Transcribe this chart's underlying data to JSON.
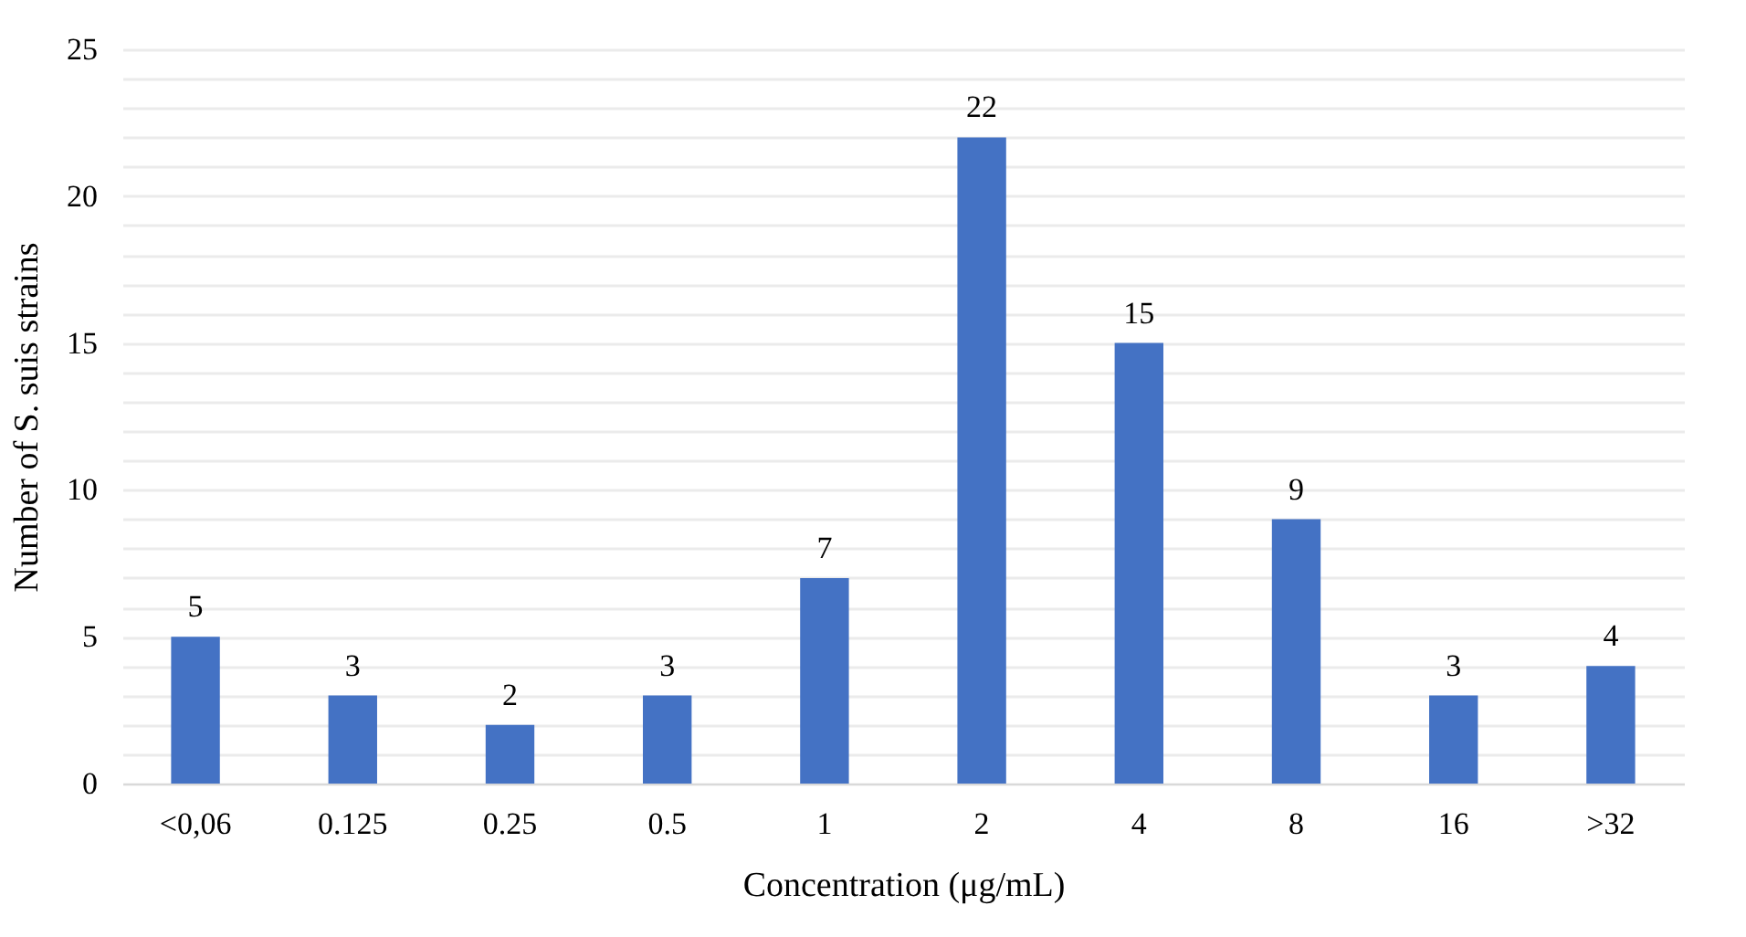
{
  "chart_data": {
    "type": "bar",
    "categories": [
      "<0,06",
      "0.125",
      "0.25",
      "0.5",
      "1",
      "2",
      "4",
      "8",
      "16",
      ">32"
    ],
    "values": [
      5,
      3,
      2,
      3,
      7,
      22,
      15,
      9,
      3,
      4
    ],
    "color": "#4472c4",
    "xlabel": "Concentration (μg/mL)",
    "ylabel": "Number of S. suis strains",
    "ylim": [
      0,
      25
    ],
    "yticks": [
      0,
      {
        "value": 1,
        "label": null
      },
      {
        "value": 2,
        "label": null
      },
      {
        "value": 3,
        "label": null
      },
      {
        "value": 4,
        "label": null
      },
      5,
      {
        "value": 6,
        "label": null
      },
      {
        "value": 7,
        "label": null
      },
      {
        "value": 8,
        "label": null
      },
      {
        "value": 9,
        "label": null
      },
      10,
      {
        "value": 11,
        "label": null
      },
      {
        "value": 12,
        "label": null
      },
      {
        "value": 13,
        "label": null
      },
      {
        "value": 14,
        "label": null
      },
      15,
      {
        "value": 16,
        "label": null
      },
      {
        "value": 17,
        "label": null
      },
      {
        "value": 18,
        "label": null
      },
      {
        "value": 19,
        "label": null
      },
      20,
      {
        "value": 21,
        "label": null
      },
      {
        "value": 22,
        "label": null
      },
      {
        "value": 23,
        "label": null
      },
      {
        "value": 24,
        "label": null
      },
      25
    ],
    "grid": "y",
    "data_labels": true
  }
}
